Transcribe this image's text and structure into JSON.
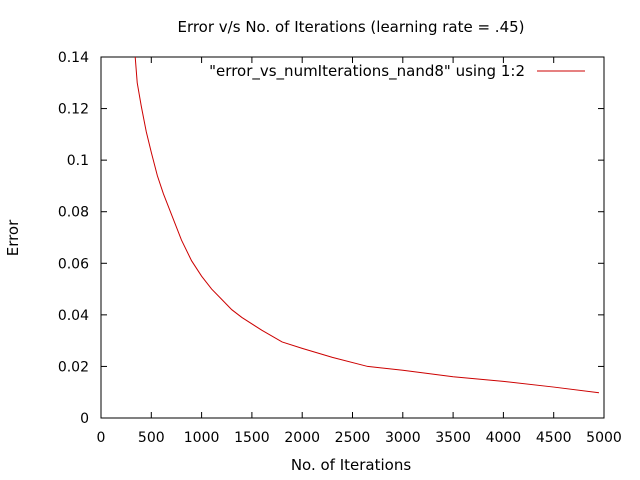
{
  "chart_data": {
    "type": "line",
    "title": "Error v/s No. of Iterations (learning rate = .45)",
    "xlabel": "No. of Iterations",
    "ylabel": "Error",
    "xlim": [
      0,
      5000
    ],
    "ylim": [
      0,
      0.14
    ],
    "xticks": [
      0,
      500,
      1000,
      1500,
      2000,
      2500,
      3000,
      3500,
      4000,
      4500,
      5000
    ],
    "xtick_labels": [
      "0",
      "500",
      "1000",
      "1500",
      "2000",
      "2500",
      "3000",
      "3500",
      "4000",
      "4500",
      "5000"
    ],
    "yticks": [
      0,
      0.02,
      0.04,
      0.06,
      0.08,
      0.1,
      0.12,
      0.14
    ],
    "ytick_labels": [
      "0",
      "0.02",
      "0.04",
      "0.06",
      "0.08",
      "0.1",
      "0.12",
      "0.14"
    ],
    "grid": false,
    "legend_position": "top-right",
    "series": [
      {
        "name": "\"error_vs_numIterations_nand8\" using 1:2",
        "color": "#cc0000",
        "x": [
          340,
          360,
          400,
          450,
          500,
          560,
          620,
          700,
          800,
          900,
          1000,
          1100,
          1200,
          1300,
          1400,
          1600,
          1800,
          2000,
          2300,
          2650,
          3000,
          3500,
          4000,
          4500,
          4950
        ],
        "y": [
          0.14,
          0.13,
          0.121,
          0.111,
          0.103,
          0.094,
          0.087,
          0.079,
          0.069,
          0.061,
          0.055,
          0.05,
          0.046,
          0.042,
          0.039,
          0.034,
          0.0295,
          0.027,
          0.0235,
          0.02,
          0.0185,
          0.016,
          0.0142,
          0.012,
          0.0098
        ]
      }
    ]
  }
}
